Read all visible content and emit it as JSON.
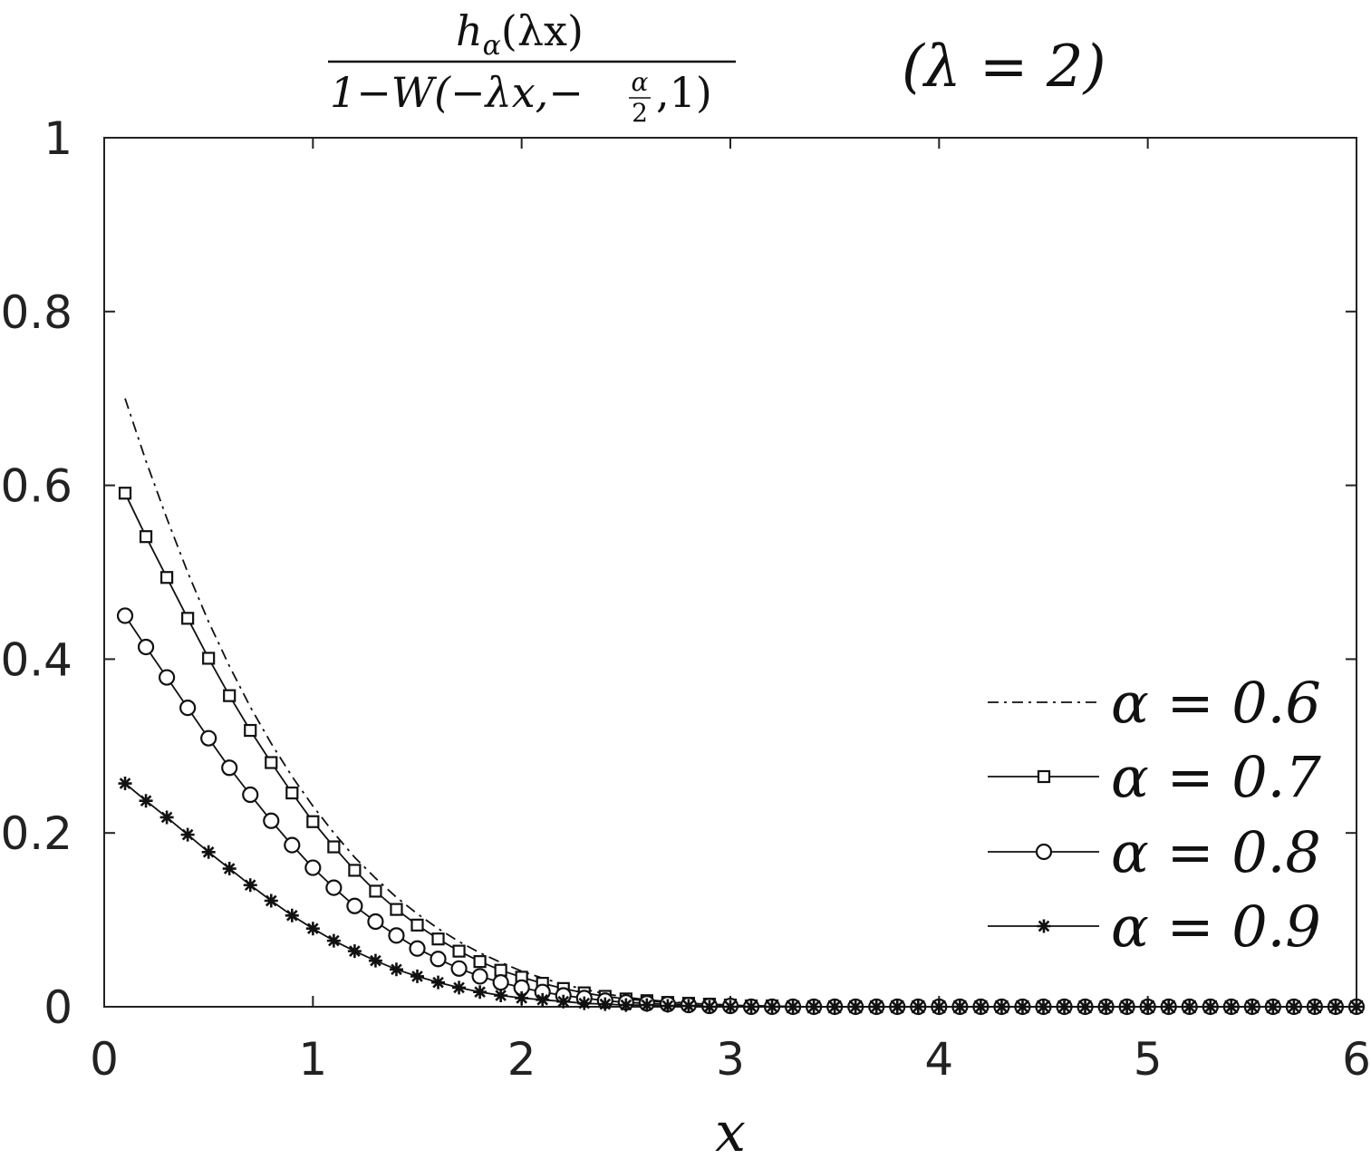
{
  "chart_data": {
    "type": "line",
    "title": {
      "numerator": "h",
      "numerator_sub": "α",
      "numerator_arg": "(λx)",
      "denominator_pre": "1−W(−λx,−",
      "denominator_frac_num": "α",
      "denominator_frac_den": "2",
      "denominator_post": ",1)",
      "param": "(λ = 2)"
    },
    "xlabel": "x",
    "ylabel": "",
    "xlim": [
      0,
      6
    ],
    "ylim": [
      0,
      1
    ],
    "xticks": [
      "0",
      "1",
      "2",
      "3",
      "4",
      "5",
      "6"
    ],
    "yticks": [
      "0",
      "0.2",
      "0.4",
      "0.6",
      "0.8",
      "1"
    ],
    "legend_position": "right",
    "x": [
      0.1,
      0.2,
      0.3,
      0.4,
      0.5,
      0.6,
      0.7,
      0.8,
      0.9,
      1.0,
      1.1,
      1.2,
      1.3,
      1.4,
      1.5,
      1.6,
      1.7,
      1.8,
      1.9,
      2.0,
      2.1,
      2.2,
      2.3,
      2.4,
      2.5,
      2.6,
      2.7,
      2.8,
      2.9,
      3.0,
      3.1,
      3.2,
      3.3,
      3.4,
      3.5,
      3.6,
      3.7,
      3.8,
      3.9,
      4.0,
      4.1,
      4.2,
      4.3,
      4.4,
      4.5,
      4.6,
      4.7,
      4.8,
      4.9,
      5.0,
      5.1,
      5.2,
      5.3,
      5.4,
      5.5,
      5.6,
      5.7,
      5.8,
      5.9,
      6.0
    ],
    "series": [
      {
        "name": "α = 0.6",
        "style": "dashdot",
        "marker": "none",
        "values": [
          0.7,
          0.628,
          0.562,
          0.5,
          0.443,
          0.392,
          0.345,
          0.303,
          0.265,
          0.231,
          0.2,
          0.172,
          0.148,
          0.126,
          0.107,
          0.09,
          0.075,
          0.062,
          0.051,
          0.041,
          0.033,
          0.026,
          0.02,
          0.015,
          0.011,
          0.008,
          0.006,
          0.004,
          0.003,
          0.002,
          0.001,
          0.001,
          0.0,
          0.0,
          0.0,
          0.0,
          0.0,
          0.0,
          0.0,
          0.0,
          0.0,
          0.0,
          0.0,
          0.0,
          0.0,
          0.0,
          0.0,
          0.0,
          0.0,
          0.0,
          0.0,
          0.0,
          0.0,
          0.0,
          0.0,
          0.0,
          0.0,
          0.0,
          0.0,
          0.0
        ]
      },
      {
        "name": "α = 0.7",
        "style": "solid",
        "marker": "square",
        "values": [
          0.591,
          0.541,
          0.494,
          0.447,
          0.401,
          0.358,
          0.318,
          0.281,
          0.246,
          0.213,
          0.184,
          0.157,
          0.133,
          0.112,
          0.094,
          0.078,
          0.064,
          0.052,
          0.042,
          0.034,
          0.027,
          0.021,
          0.016,
          0.012,
          0.009,
          0.007,
          0.005,
          0.004,
          0.003,
          0.002,
          0.001,
          0.001,
          0.0,
          0.0,
          0.0,
          0.0,
          0.0,
          0.0,
          0.0,
          0.0,
          0.0,
          0.0,
          0.0,
          0.0,
          0.0,
          0.0,
          0.0,
          0.0,
          0.0,
          0.0,
          0.0,
          0.0,
          0.0,
          0.0,
          0.0,
          0.0,
          0.0,
          0.0,
          0.0,
          0.0
        ]
      },
      {
        "name": "α = 0.8",
        "style": "solid",
        "marker": "circle",
        "values": [
          0.45,
          0.414,
          0.379,
          0.344,
          0.309,
          0.275,
          0.244,
          0.214,
          0.186,
          0.16,
          0.137,
          0.116,
          0.098,
          0.082,
          0.067,
          0.055,
          0.044,
          0.035,
          0.028,
          0.022,
          0.017,
          0.013,
          0.01,
          0.007,
          0.005,
          0.004,
          0.003,
          0.002,
          0.001,
          0.001,
          0.0,
          0.0,
          0.0,
          0.0,
          0.0,
          0.0,
          0.0,
          0.0,
          0.0,
          0.0,
          0.0,
          0.0,
          0.0,
          0.0,
          0.0,
          0.0,
          0.0,
          0.0,
          0.0,
          0.0,
          0.0,
          0.0,
          0.0,
          0.0,
          0.0,
          0.0,
          0.0,
          0.0,
          0.0,
          0.0
        ]
      },
      {
        "name": "α = 0.9",
        "style": "solid",
        "marker": "asterisk",
        "values": [
          0.257,
          0.237,
          0.218,
          0.198,
          0.178,
          0.159,
          0.14,
          0.122,
          0.105,
          0.09,
          0.076,
          0.064,
          0.053,
          0.043,
          0.035,
          0.028,
          0.022,
          0.017,
          0.013,
          0.01,
          0.008,
          0.006,
          0.004,
          0.003,
          0.002,
          0.002,
          0.001,
          0.001,
          0.0,
          0.0,
          0.0,
          0.0,
          0.0,
          0.0,
          0.0,
          0.0,
          0.0,
          0.0,
          0.0,
          0.0,
          0.0,
          0.0,
          0.0,
          0.0,
          0.0,
          0.0,
          0.0,
          0.0,
          0.0,
          0.0,
          0.0,
          0.0,
          0.0,
          0.0,
          0.0,
          0.0,
          0.0,
          0.0,
          0.0,
          0.0
        ]
      }
    ]
  }
}
